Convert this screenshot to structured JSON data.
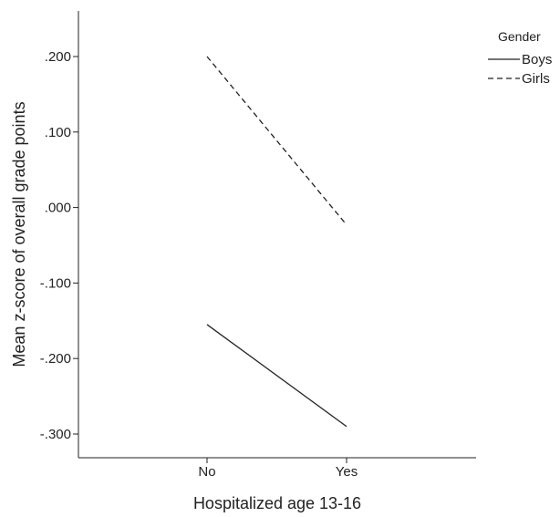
{
  "chart_data": {
    "type": "line",
    "xlabel": "Hospitalized age 13-16",
    "ylabel": "Mean z-score of overall grade points",
    "categories": [
      "No",
      "Yes"
    ],
    "y_ticks": [
      ".200",
      ".100",
      ".000",
      "-.100",
      "-.200",
      "-.300"
    ],
    "y_tick_values": [
      0.2,
      0.1,
      0.0,
      -0.1,
      -0.2,
      -0.3
    ],
    "ylim": [
      -0.32,
      0.26
    ],
    "grid": false,
    "legend": {
      "title": "Gender",
      "placement": "right",
      "entries": [
        {
          "label": "Boys",
          "style": "solid"
        },
        {
          "label": "Girls",
          "style": "dashed"
        }
      ]
    },
    "series": [
      {
        "name": "Boys",
        "values": [
          -0.155,
          -0.29
        ],
        "style": "solid",
        "color": "#222222"
      },
      {
        "name": "Girls",
        "values": [
          0.2,
          -0.023
        ],
        "style": "dashed",
        "color": "#222222"
      }
    ]
  }
}
